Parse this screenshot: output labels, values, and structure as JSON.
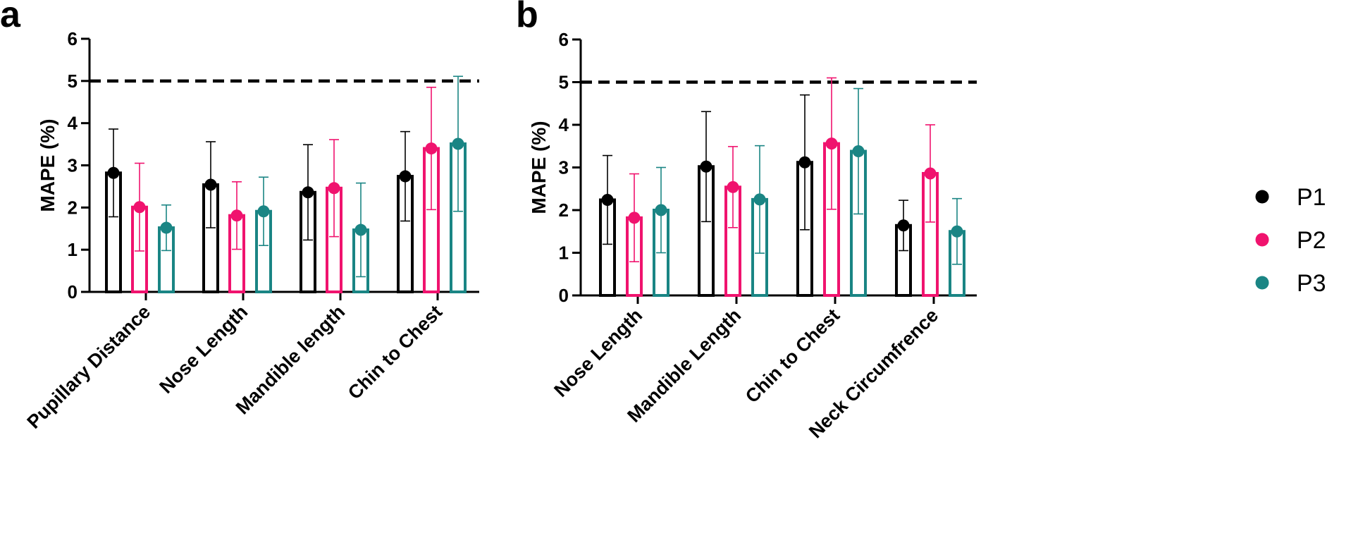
{
  "chart_data": [
    {
      "type": "bar",
      "panel_label": "a",
      "ylabel": "MAPE (%)",
      "xlabel": "",
      "ylim": [
        0,
        6
      ],
      "yticks": [
        "0",
        "1",
        "2",
        "3",
        "4",
        "5",
        "6"
      ],
      "reference_line": 5,
      "categories": [
        "Pupillary Distance",
        "Nose Length",
        "Mandible length",
        "Chin to Chest"
      ],
      "series": [
        {
          "name": "P1",
          "color": "#000000",
          "values": [
            2.82,
            2.54,
            2.36,
            2.74
          ],
          "errors": [
            1.04,
            1.02,
            1.13,
            1.06
          ]
        },
        {
          "name": "P2",
          "color": "#f0136e",
          "values": [
            2.01,
            1.81,
            2.46,
            3.4
          ],
          "errors": [
            1.04,
            0.8,
            1.15,
            1.45
          ]
        },
        {
          "name": "P3",
          "color": "#1a8584",
          "values": [
            1.52,
            1.91,
            1.47,
            3.51
          ],
          "errors": [
            0.54,
            0.81,
            1.11,
            1.6
          ]
        }
      ]
    },
    {
      "type": "bar",
      "panel_label": "b",
      "ylabel": "MAPE (%)",
      "xlabel": "",
      "ylim": [
        0,
        6
      ],
      "yticks": [
        "0",
        "1",
        "2",
        "3",
        "4",
        "5",
        "6"
      ],
      "reference_line": 5,
      "categories": [
        "Nose Length",
        "Mandible Length",
        "Chin to Chest",
        "Neck Circumfrence"
      ],
      "series": [
        {
          "name": "P1",
          "color": "#000000",
          "values": [
            2.24,
            3.02,
            3.12,
            1.64
          ],
          "errors": [
            1.04,
            1.29,
            1.58,
            0.59
          ]
        },
        {
          "name": "P2",
          "color": "#f0136e",
          "values": [
            1.82,
            2.54,
            3.56,
            2.86
          ],
          "errors": [
            1.03,
            0.95,
            1.54,
            1.14
          ]
        },
        {
          "name": "P3",
          "color": "#1a8584",
          "values": [
            2.0,
            2.25,
            3.38,
            1.5
          ],
          "errors": [
            1.0,
            1.26,
            1.47,
            0.77
          ]
        }
      ]
    }
  ],
  "legend": [
    {
      "label": "P1",
      "color": "#000000"
    },
    {
      "label": "P2",
      "color": "#f0136e"
    },
    {
      "label": "P3",
      "color": "#1a8584"
    }
  ]
}
